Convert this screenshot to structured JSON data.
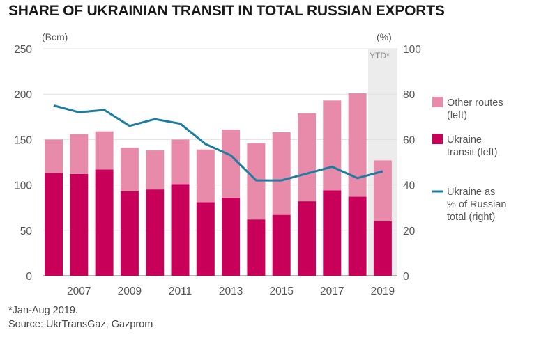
{
  "title": "SHARE OF UKRAINIAN TRANSIT IN TOTAL RUSSIAN EXPORTS",
  "footnote": "*Jan-Aug 2019.",
  "source": "Source: UkrTransGaz, Gazprom",
  "chart_data": {
    "type": "bar",
    "stacked": true,
    "years": [
      2006,
      2007,
      2008,
      2009,
      2010,
      2011,
      2012,
      2013,
      2014,
      2015,
      2016,
      2017,
      2018,
      2019
    ],
    "x_tick_labels": [
      "2007",
      "2009",
      "2011",
      "2013",
      "2015",
      "2017",
      "2019"
    ],
    "x_tick_years": [
      2007,
      2009,
      2011,
      2013,
      2015,
      2017,
      2019
    ],
    "y_left": {
      "unit": "(Bcm)",
      "range": [
        0,
        250
      ],
      "ticks": [
        "0",
        "50",
        "100",
        "150",
        "200",
        "250"
      ]
    },
    "y_right": {
      "unit": "(%)",
      "range": [
        0,
        100
      ],
      "ticks": [
        "0",
        "20",
        "40",
        "60",
        "80",
        "100"
      ]
    },
    "ytd_label": "YTD*",
    "ytd_year": 2019,
    "series": [
      {
        "name": "Ukraine transit (left)",
        "legend": [
          "Ukraine",
          "transit (left)"
        ],
        "axis": "left",
        "color": "#c8005a",
        "values": [
          113,
          112,
          117,
          93,
          95,
          101,
          81,
          86,
          62,
          67,
          82,
          94,
          87,
          60
        ]
      },
      {
        "name": "Other routes (left)",
        "legend": [
          "Other routes",
          "(left)"
        ],
        "axis": "left",
        "color": "#e88aa9",
        "values": [
          37,
          44,
          42,
          48,
          43,
          49,
          58,
          75,
          84,
          91,
          97,
          99,
          114,
          67
        ]
      },
      {
        "name": "Ukraine as % of Russian total (right)",
        "legend": [
          "Ukraine as",
          "% of Russian",
          "total (right)"
        ],
        "axis": "right",
        "type": "line",
        "color": "#1b7ea0",
        "values": [
          75,
          72,
          73,
          66,
          69,
          67,
          58,
          53,
          42,
          42,
          45,
          48,
          43,
          46
        ]
      }
    ]
  }
}
